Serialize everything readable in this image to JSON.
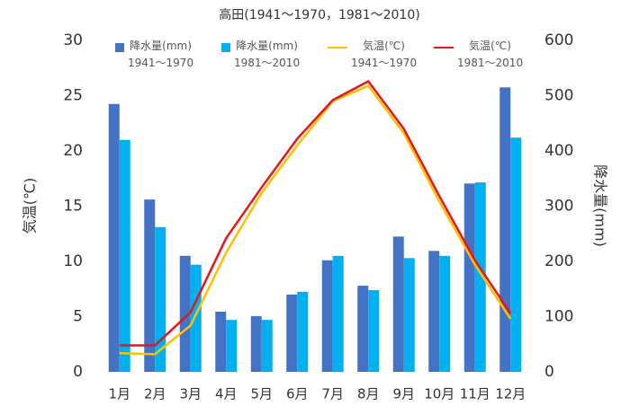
{
  "chart_data": {
    "type": "bar",
    "title": "高田(1941～1970，1981～2010)",
    "categories": [
      "1月",
      "2月",
      "3月",
      "4月",
      "5月",
      "6月",
      "7月",
      "8月",
      "9月",
      "10月",
      "11月",
      "12月"
    ],
    "ylabel": "気温(℃)",
    "y2label": "降水量(mm)",
    "ylim": [
      0,
      30
    ],
    "yticks": [
      0,
      5,
      10,
      15,
      20,
      25,
      30
    ],
    "y2lim": [
      0,
      600
    ],
    "y2ticks": [
      0,
      100,
      200,
      300,
      400,
      500,
      600
    ],
    "series": [
      {
        "name": "降水量(mm)\n1941～1970",
        "type": "bar",
        "axis": "y2",
        "color": "#4472c4",
        "values": [
          485,
          312,
          210,
          109,
          101,
          140,
          202,
          156,
          245,
          219,
          341,
          515
        ]
      },
      {
        "name": "降水量(mm)\n1981～2010",
        "type": "bar",
        "axis": "y2",
        "color": "#00b0f0",
        "values": [
          420,
          262,
          194,
          94,
          94,
          145,
          210,
          148,
          206,
          210,
          343,
          424
        ]
      },
      {
        "name": "気温(℃)\n1941～1970",
        "type": "line",
        "color": "#ffc000",
        "values": [
          1.7,
          1.6,
          4.2,
          10.8,
          16.2,
          20.5,
          24.5,
          25.9,
          21.6,
          15.4,
          9.7,
          4.8
        ]
      },
      {
        "name": "気温(℃)\n1981～2010",
        "type": "line",
        "color": "#e8151b",
        "values": [
          2.4,
          2.4,
          5.4,
          12.1,
          16.7,
          21.1,
          24.6,
          26.3,
          22.0,
          15.9,
          10.1,
          5.3
        ]
      }
    ]
  }
}
